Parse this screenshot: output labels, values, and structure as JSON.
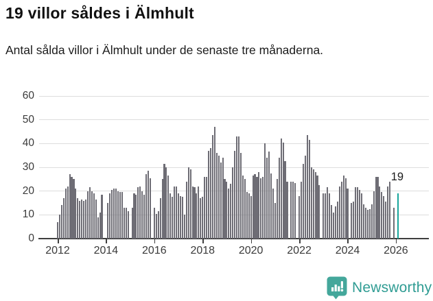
{
  "header": {
    "title": "19 villor såldes i Älmhult",
    "subtitle": "Antal sålda villor i Älmhult under de senaste tre månaderna."
  },
  "chart_data": {
    "type": "bar",
    "title": "19 villor såldes i Älmhult",
    "subtitle": "Antal sålda villor i Älmhult under de senaste tre månaderna.",
    "xlabel": "",
    "ylabel": "",
    "x_unit": "month",
    "x_start": "2012-01",
    "x_end": "2026-01",
    "x_tick_labels": [
      "2012",
      "2014",
      "2016",
      "2018",
      "2020",
      "2022",
      "2024",
      "2026"
    ],
    "y_ticks": [
      0,
      10,
      20,
      30,
      40,
      50,
      60
    ],
    "ylim": [
      0,
      60
    ],
    "grid": "horizontal",
    "legend": "none",
    "bar_color": "#6e6d75",
    "highlight_color": "#18a59c",
    "highlight_last": true,
    "highlight_value_label": "19",
    "values": [
      7,
      10,
      14,
      17,
      21,
      22,
      27,
      26,
      25,
      21,
      17,
      16,
      16.5,
      16,
      16.5,
      20,
      21.5,
      20,
      19,
      16.5,
      9,
      11,
      18.5,
      0,
      0,
      15,
      19,
      20.5,
      21,
      21,
      20,
      19.5,
      19.5,
      13,
      13,
      11.5,
      0,
      13,
      19,
      18.5,
      21.5,
      22,
      20,
      18.5,
      27,
      28.5,
      25.5,
      0,
      13,
      10.5,
      11.5,
      17,
      25,
      31.5,
      30,
      26.5,
      19,
      17.5,
      22,
      22,
      19,
      18,
      17.5,
      10,
      24,
      30,
      29,
      22,
      21.5,
      19,
      22,
      17,
      17.5,
      26,
      26,
      37,
      38,
      43.5,
      47,
      36,
      35,
      32,
      34,
      25,
      24,
      21,
      23,
      30,
      37,
      43,
      43,
      36,
      26.5,
      25,
      19.5,
      19,
      18,
      26.5,
      27,
      26,
      28,
      25.5,
      26,
      40,
      34,
      36.5,
      27.5,
      21,
      15,
      25,
      34,
      42,
      40.5,
      32.5,
      24,
      0,
      24,
      24,
      23.5,
      0,
      18,
      24,
      31.5,
      35,
      43.5,
      41.5,
      30,
      29,
      28,
      26.5,
      22.5,
      0,
      19,
      19,
      21.5,
      19,
      14,
      11,
      13.5,
      15.5,
      22,
      24,
      26.5,
      25.5,
      21,
      0,
      15,
      15.5,
      21.5,
      21.5,
      20.5,
      19,
      14.5,
      13,
      12,
      12.5,
      14.5,
      20,
      26,
      26,
      22,
      19.5,
      18,
      15.5,
      22,
      24,
      0,
      13,
      19
    ]
  },
  "footer": {
    "brand": "Newsworthy",
    "brand_color": "#2f9c93",
    "badge_color": "#44a79b",
    "badge_icon": "bar-chart-exclamation-pin"
  }
}
